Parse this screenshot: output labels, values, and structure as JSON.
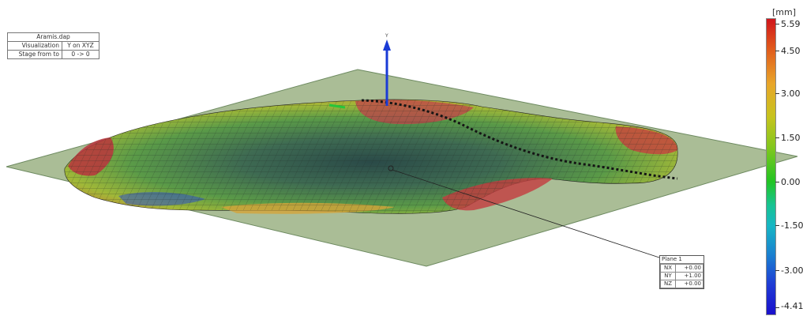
{
  "info": {
    "title": "Aramis.dap",
    "rows": [
      {
        "key": "Visualization",
        "value": "Y on XYZ"
      },
      {
        "key": "Stage from to",
        "value": "0 -> 0"
      }
    ]
  },
  "axis_label": "Y",
  "plane": {
    "title": "Plane 1",
    "rows": [
      {
        "key": "NX",
        "value": "+0.00"
      },
      {
        "key": "NY",
        "value": "+1.00"
      },
      {
        "key": "NZ",
        "value": "+0.00"
      }
    ]
  },
  "legend": {
    "unit": "[mm]",
    "labels": [
      "5.59",
      "4.50",
      "3.00",
      "1.50",
      "0.00",
      "-1.50",
      "-3.00",
      "-4.41"
    ]
  },
  "colors": {
    "plane_fill": "#9bb184",
    "surface_center": "#2f4f4a",
    "axis_blue": "#1a3bd6",
    "max_red": "#d0151b",
    "min_blue": "#1a10cc"
  }
}
